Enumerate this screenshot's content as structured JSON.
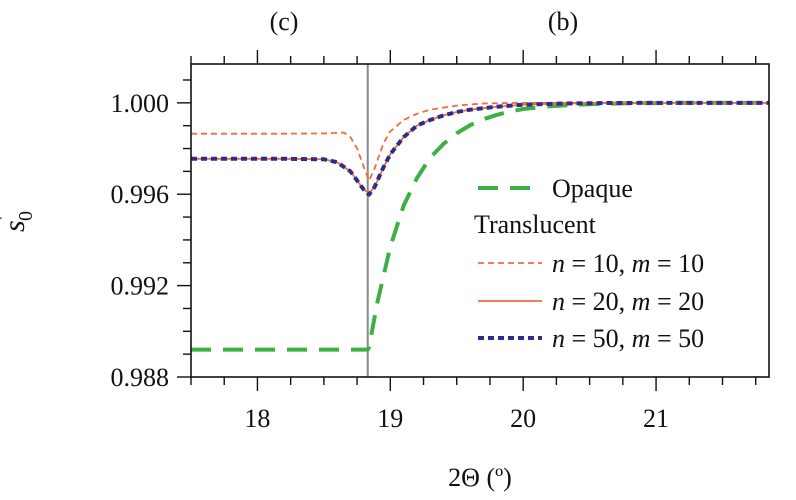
{
  "chart_data": {
    "type": "line",
    "xlabel": "2Θ  (º)",
    "ylabel": "s",
    "ylabel_prime": "'",
    "ylabel_sub": "0",
    "xlim": [
      17.5,
      21.85
    ],
    "ylim": [
      0.988,
      1.0017
    ],
    "x_ticks": [
      18,
      19,
      20,
      21
    ],
    "x_tick_labels": [
      "18",
      "19",
      "20",
      "21"
    ],
    "y_ticks": [
      0.988,
      0.992,
      0.996,
      1.0
    ],
    "y_tick_labels": [
      "0.988",
      "0.992",
      "0.996",
      "1.000"
    ],
    "top_labels": [
      {
        "text": "(c)",
        "x": 18.2
      },
      {
        "text": "(b)",
        "x": 20.3
      }
    ],
    "vertical_line": {
      "x": 18.83,
      "color": "#888888"
    },
    "legend": {
      "placement": "center-right",
      "group_title": "Translucent",
      "entries": [
        {
          "series": "opaque",
          "parts": [
            {
              "t": "Opaque"
            }
          ]
        },
        {
          "series": "n10",
          "parts": [
            {
              "t": "n",
              "i": true
            },
            {
              "t": " = 10, "
            },
            {
              "t": "m",
              "i": true
            },
            {
              "t": " = 10"
            }
          ]
        },
        {
          "series": "n20",
          "parts": [
            {
              "t": "n",
              "i": true
            },
            {
              "t": " = 20, "
            },
            {
              "t": "m",
              "i": true
            },
            {
              "t": " = 20"
            }
          ]
        },
        {
          "series": "n50",
          "parts": [
            {
              "t": "n",
              "i": true
            },
            {
              "t": " = 50, "
            },
            {
              "t": "m",
              "i": true
            },
            {
              "t": " = 50"
            }
          ]
        }
      ]
    },
    "series": [
      {
        "key": "opaque",
        "name": "Opaque",
        "color": "#3cb043",
        "style": "long-dash",
        "x": [
          17.5,
          18.83,
          18.84,
          18.9,
          19.0,
          19.1,
          19.2,
          19.3,
          19.4,
          19.5,
          19.6,
          19.7,
          19.8,
          19.9,
          20.0,
          20.2,
          20.4,
          20.6,
          20.8,
          21.0,
          21.2,
          21.5,
          21.85
        ],
        "y": [
          0.9892,
          0.9892,
          0.9893,
          0.9912,
          0.9937,
          0.9955,
          0.9967,
          0.9976,
          0.9982,
          0.99867,
          0.99902,
          0.99928,
          0.99947,
          0.99962,
          0.99973,
          0.99985,
          0.99992,
          0.99996,
          0.99998,
          0.99999,
          1.0,
          1.0,
          1.0
        ]
      },
      {
        "key": "n10",
        "name": "n = 10, m = 10",
        "color": "#f26b3a",
        "style": "short-dash",
        "x": [
          17.5,
          18.2,
          18.5,
          18.65,
          18.7,
          18.75,
          18.8,
          18.84,
          18.88,
          18.95,
          19.0,
          19.1,
          19.2,
          19.3,
          19.5,
          19.7,
          20.0,
          20.5,
          21.0,
          21.85
        ],
        "y": [
          0.99865,
          0.99865,
          0.99866,
          0.9987,
          0.9985,
          0.998,
          0.9972,
          0.9966,
          0.9971,
          0.99825,
          0.99875,
          0.99925,
          0.99952,
          0.9997,
          0.99988,
          0.99997,
          1.0,
          1.0,
          1.0,
          1.0
        ]
      },
      {
        "key": "n20",
        "name": "n = 20, m = 20",
        "color": "#f26b3a",
        "style": "solid",
        "x": [
          17.5,
          18.2,
          18.5,
          18.6,
          18.7,
          18.75,
          18.8,
          18.84,
          18.88,
          18.95,
          19.0,
          19.1,
          19.2,
          19.3,
          19.4,
          19.5,
          19.6,
          19.8,
          20.0,
          20.3,
          20.6,
          21.0,
          21.85
        ],
        "y": [
          0.99755,
          0.99755,
          0.99753,
          0.9974,
          0.997,
          0.9966,
          0.9962,
          0.99605,
          0.9963,
          0.9972,
          0.99775,
          0.9985,
          0.999,
          0.99925,
          0.99945,
          0.9996,
          0.9997,
          0.99983,
          0.99992,
          0.99997,
          0.99999,
          1.0,
          1.0
        ]
      },
      {
        "key": "n50",
        "name": "n = 50, m = 50",
        "color": "#2b2e8c",
        "style": "dotted",
        "x": [
          17.5,
          18.2,
          18.5,
          18.6,
          18.7,
          18.75,
          18.8,
          18.84,
          18.88,
          18.95,
          19.0,
          19.1,
          19.2,
          19.3,
          19.4,
          19.5,
          19.6,
          19.8,
          20.0,
          20.3,
          20.6,
          21.0,
          21.85
        ],
        "y": [
          0.99755,
          0.99755,
          0.99753,
          0.9974,
          0.997,
          0.9966,
          0.9962,
          0.99598,
          0.9963,
          0.9972,
          0.99775,
          0.9985,
          0.999,
          0.99925,
          0.99945,
          0.9996,
          0.9997,
          0.99983,
          0.99992,
          0.99997,
          0.99999,
          1.0,
          1.0
        ]
      }
    ]
  }
}
